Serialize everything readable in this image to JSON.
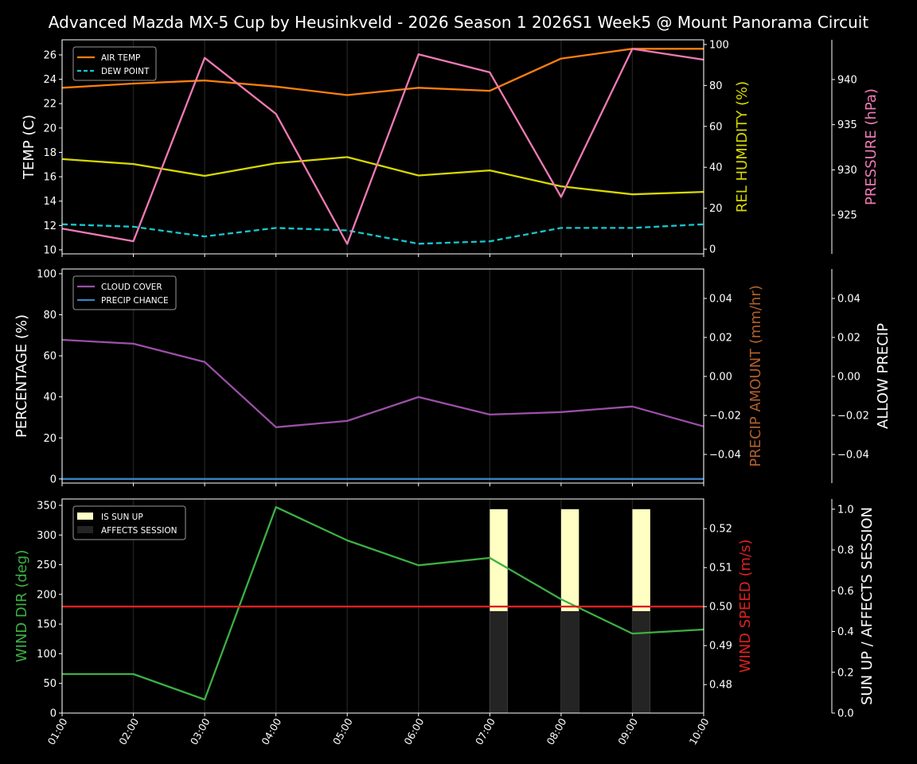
{
  "title": "Advanced Mazda MX-5 Cup by Heusinkveld - 2026 Season 1 2026S1 Week5 @ Mount Panorama Circuit",
  "chart_data": [
    {
      "type": "line",
      "x": [
        "01:00",
        "02:00",
        "03:00",
        "04:00",
        "05:00",
        "06:00",
        "07:00",
        "08:00",
        "09:00",
        "10:00"
      ],
      "grid": "vertical",
      "legend": "top-left",
      "axes": [
        {
          "side": "left",
          "label": "TEMP (C)",
          "color": "#ffffff",
          "ylim": [
            9.67,
            27.24
          ],
          "ticks": [
            10,
            12,
            14,
            16,
            18,
            20,
            22,
            24,
            26
          ],
          "tick_labels": [
            "10",
            "12",
            "14",
            "16",
            "18",
            "20",
            "22",
            "24",
            "26"
          ]
        },
        {
          "side": "right",
          "label": "REL HUMIDITY (%)",
          "color": "#d8d800",
          "ylim": [
            -2.3,
            102.3
          ],
          "ticks": [
            0,
            20,
            40,
            60,
            80,
            100
          ],
          "tick_labels": [
            "0",
            "20",
            "40",
            "60",
            "80",
            "100"
          ]
        },
        {
          "side": "far-right",
          "label": "PRESSURE (hPa)",
          "color": "#f07ab4",
          "ylim": [
            920.7,
            944.4
          ],
          "ticks": [
            925,
            930,
            935,
            940
          ],
          "tick_labels": [
            "925",
            "930",
            "935",
            "940"
          ]
        }
      ],
      "series": [
        {
          "name": "AIR TEMP",
          "axis": 0,
          "color": "#ff7f0e",
          "dash": false,
          "legend": true,
          "values": [
            23.3,
            23.65,
            23.9,
            23.4,
            22.7,
            23.3,
            23.05,
            25.7,
            26.5,
            26.5
          ]
        },
        {
          "name": "DEW POINT",
          "axis": 0,
          "color": "#17c8d0",
          "dash": true,
          "legend": true,
          "values": [
            12.1,
            11.9,
            11.1,
            11.8,
            11.6,
            10.5,
            10.7,
            11.8,
            11.8,
            12.1
          ]
        },
        {
          "axis": 1,
          "color": "#d8d800",
          "dash": false,
          "legend": false,
          "values": [
            44,
            41.6,
            35.8,
            42,
            45,
            36,
            38.5,
            30.7,
            26.8,
            28
          ]
        },
        {
          "axis": 2,
          "color": "#f07ab4",
          "dash": false,
          "legend": false,
          "values": [
            923.5,
            922.1,
            942.4,
            936.2,
            921.8,
            942.8,
            940.8,
            927.0,
            943.4,
            942.2
          ]
        }
      ]
    },
    {
      "type": "line",
      "x": [
        "01:00",
        "02:00",
        "03:00",
        "04:00",
        "05:00",
        "06:00",
        "07:00",
        "08:00",
        "09:00",
        "10:00"
      ],
      "grid": "vertical",
      "legend": "top-left",
      "axes": [
        {
          "side": "left",
          "label": "PERCENTAGE (%)",
          "color": "#ffffff",
          "ylim": [
            -2,
            102.3
          ],
          "ticks": [
            0,
            20,
            40,
            60,
            80,
            100
          ],
          "tick_labels": [
            "0",
            "20",
            "40",
            "60",
            "80",
            "100"
          ]
        },
        {
          "side": "right",
          "label": "PRECIP AMOUNT (mm/hr)",
          "color": "#b0602a",
          "ylim": [
            -0.0547,
            0.0551
          ],
          "ticks": [
            -0.04,
            -0.02,
            0,
            0.02,
            0.04
          ],
          "tick_labels": [
            "−0.04",
            "−0.02",
            "0.00",
            "0.02",
            "0.04"
          ]
        },
        {
          "side": "far-right",
          "label": "ALLOW PRECIP",
          "color": "#ffffff",
          "ylim": [
            -0.0547,
            0.0551
          ],
          "ticks": [
            -0.04,
            -0.02,
            0,
            0.02,
            0.04
          ],
          "tick_labels": [
            "−0.04",
            "−0.02",
            "0.00",
            "0.02",
            "0.04"
          ]
        }
      ],
      "series": [
        {
          "name": "CLOUD COVER",
          "axis": 0,
          "color": "#9b4fa8",
          "dash": false,
          "legend": true,
          "values": [
            67.8,
            65.9,
            57,
            25.2,
            28.3,
            39.9,
            31.4,
            32.6,
            35.3,
            25.6
          ]
        },
        {
          "name": "PRECIP CHANCE",
          "axis": 0,
          "color": "#3a80c4",
          "dash": false,
          "legend": true,
          "values": [
            0,
            0,
            0,
            0,
            0,
            0,
            0,
            0,
            0,
            0
          ]
        }
      ]
    },
    {
      "type": "line",
      "x": [
        "01:00",
        "02:00",
        "03:00",
        "04:00",
        "05:00",
        "06:00",
        "07:00",
        "08:00",
        "09:00",
        "10:00"
      ],
      "grid": "vertical",
      "legend": "top-left",
      "axes": [
        {
          "side": "left",
          "label": "WIND DIR (deg)",
          "color": "#3cb043",
          "ylim": [
            0,
            360.7
          ],
          "ticks": [
            0,
            50,
            100,
            150,
            200,
            250,
            300,
            350
          ],
          "tick_labels": [
            "0",
            "50",
            "100",
            "150",
            "200",
            "250",
            "300",
            "350"
          ]
        },
        {
          "side": "right",
          "label": "WIND SPEED (m/s)",
          "color": "#dd2020",
          "ylim": [
            0.4727,
            0.5276
          ],
          "ticks": [
            0.48,
            0.49,
            0.5,
            0.51,
            0.52
          ],
          "tick_labels": [
            "0.48",
            "0.49",
            "0.50",
            "0.51",
            "0.52"
          ]
        },
        {
          "side": "far-right",
          "label": "SUN UP / AFFECTS SESSION",
          "color": "#ffffff",
          "ylim": [
            0,
            1.05
          ],
          "ticks": [
            0,
            0.2,
            0.4,
            0.6,
            0.8,
            1.0
          ],
          "tick_labels": [
            "0.0",
            "0.2",
            "0.4",
            "0.6",
            "0.8",
            "1.0"
          ]
        }
      ],
      "bars": [
        {
          "name": "IS SUN UP",
          "axis": 2,
          "color": "#ffffc4",
          "values": [
            0,
            0,
            0,
            0,
            0,
            0,
            1,
            1,
            1,
            0
          ]
        },
        {
          "name": "AFFECTS SESSION",
          "axis": 2,
          "color": "#242424",
          "values": [
            0,
            0,
            0,
            0,
            0,
            0,
            0.5,
            0.5,
            0.5,
            0
          ]
        }
      ],
      "series": [
        {
          "axis": 0,
          "color": "#3cb043",
          "dash": false,
          "legend": false,
          "values": [
            65.7,
            65.7,
            22.8,
            347,
            291,
            249,
            261.5,
            191.8,
            134,
            140.8
          ]
        },
        {
          "axis": 1,
          "color": "#dd2020",
          "dash": false,
          "legend": false,
          "values": [
            0.5,
            0.5,
            0.5,
            0.5,
            0.5,
            0.5,
            0.5,
            0.5,
            0.5,
            0.5
          ]
        }
      ]
    }
  ]
}
